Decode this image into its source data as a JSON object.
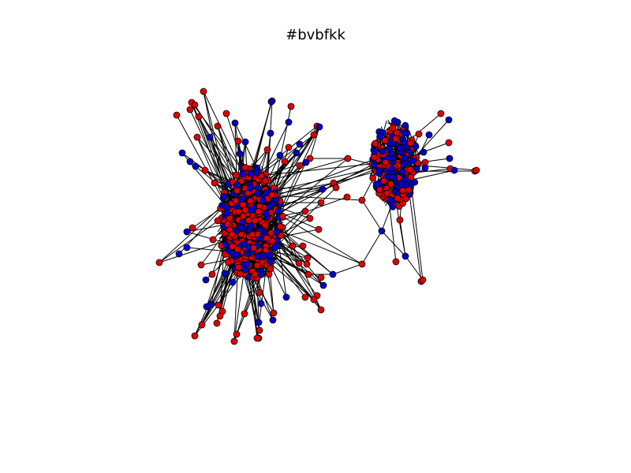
{
  "figure": {
    "title": "#bvbfkk"
  },
  "colors": {
    "group_a": "#e00000",
    "group_b": "#0000cc",
    "edge": "#000000",
    "background": "#ffffff"
  }
}
